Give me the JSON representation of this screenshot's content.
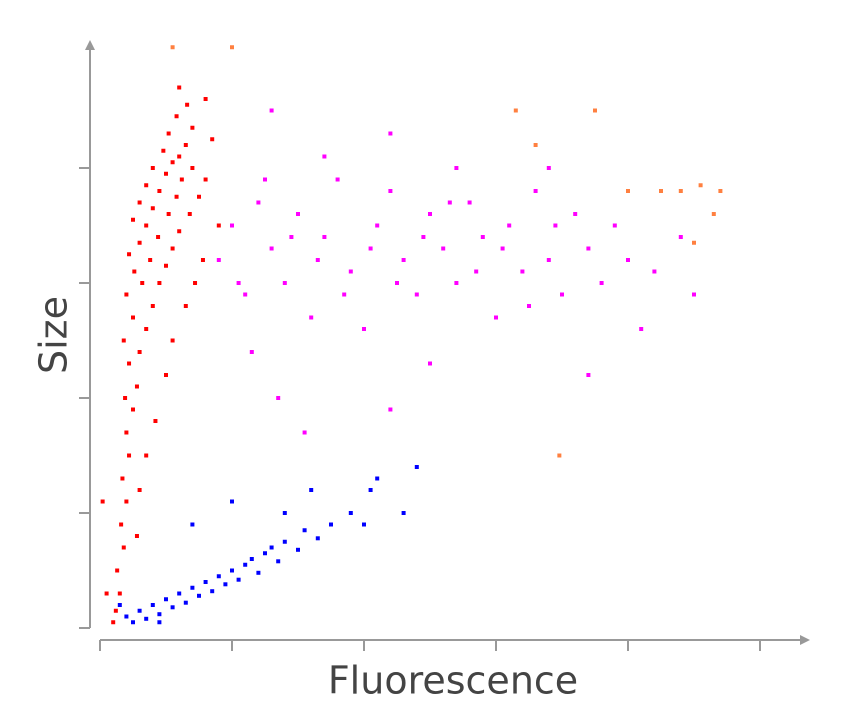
{
  "chart_data": {
    "type": "scatter",
    "xlabel": "Fluorescence",
    "ylabel": "Size",
    "xlim": [
      0,
      5.3
    ],
    "ylim": [
      0,
      5.1
    ],
    "xticks": [
      0,
      1,
      2,
      3,
      4,
      5
    ],
    "yticks": [
      0,
      1,
      2,
      3,
      4
    ],
    "grid": false,
    "series": [
      {
        "color": "#ff0000",
        "x": [
          0.12,
          0.15,
          0.13,
          0.18,
          0.16,
          0.2,
          0.17,
          0.22,
          0.2,
          0.25,
          0.19,
          0.28,
          0.22,
          0.3,
          0.18,
          0.35,
          0.25,
          0.4,
          0.2,
          0.32,
          0.45,
          0.26,
          0.5,
          0.38,
          0.22,
          0.55,
          0.3,
          0.44,
          0.6,
          0.35,
          0.25,
          0.52,
          0.68,
          0.4,
          0.3,
          0.58,
          0.75,
          0.45,
          0.35,
          0.62,
          0.8,
          0.5,
          0.4,
          0.7,
          0.55,
          0.6,
          0.48,
          0.65,
          0.52,
          0.7,
          0.58,
          0.66,
          0.6,
          0.8,
          0.85,
          0.78,
          0.65,
          0.55,
          0.5,
          0.42,
          0.35,
          0.3,
          0.28,
          0.02,
          0.05,
          0.1,
          0.72,
          0.9
        ],
        "values": [
          0.15,
          0.3,
          0.5,
          0.7,
          0.9,
          1.1,
          1.3,
          1.5,
          1.7,
          1.9,
          2.0,
          2.1,
          2.3,
          2.4,
          2.5,
          2.6,
          2.7,
          2.8,
          2.9,
          3.0,
          3.0,
          3.1,
          3.15,
          3.2,
          3.25,
          3.3,
          3.35,
          3.4,
          3.45,
          3.5,
          3.55,
          3.6,
          3.6,
          3.65,
          3.7,
          3.75,
          3.75,
          3.8,
          3.85,
          3.9,
          3.9,
          3.95,
          4.0,
          4.0,
          4.05,
          4.1,
          4.15,
          4.2,
          4.3,
          4.35,
          4.45,
          4.55,
          4.7,
          4.6,
          4.25,
          3.2,
          2.8,
          2.5,
          2.2,
          1.8,
          1.5,
          1.2,
          0.8,
          1.1,
          0.3,
          0.05,
          3.0,
          3.5
        ]
      },
      {
        "color": "#ff00ff",
        "x": [
          0.9,
          1.0,
          1.1,
          1.2,
          1.3,
          1.4,
          1.5,
          1.6,
          1.7,
          1.8,
          1.9,
          2.0,
          2.1,
          2.2,
          2.3,
          2.4,
          2.5,
          2.6,
          2.7,
          2.8,
          2.9,
          3.0,
          3.1,
          3.2,
          3.3,
          3.4,
          3.5,
          3.6,
          3.7,
          3.8,
          3.9,
          4.0,
          4.2,
          4.4,
          4.5,
          1.05,
          1.25,
          1.45,
          1.65,
          1.85,
          2.05,
          2.25,
          2.45,
          2.65,
          2.85,
          3.05,
          3.25,
          3.45,
          1.15,
          1.35,
          1.55,
          2.2,
          2.5,
          3.7,
          2.2,
          1.7,
          2.7,
          3.4,
          1.3,
          4.1
        ],
        "values": [
          3.2,
          3.5,
          2.9,
          3.7,
          3.3,
          3.0,
          3.6,
          2.7,
          3.4,
          3.9,
          3.1,
          2.6,
          3.5,
          3.8,
          3.2,
          2.9,
          3.6,
          3.3,
          3.0,
          3.7,
          3.4,
          2.7,
          3.5,
          3.1,
          3.8,
          3.2,
          2.9,
          3.6,
          3.3,
          3.0,
          3.5,
          3.2,
          3.1,
          3.4,
          2.9,
          3.0,
          3.9,
          3.4,
          3.2,
          2.9,
          3.3,
          3.0,
          3.4,
          3.7,
          3.1,
          3.3,
          2.8,
          3.5,
          2.4,
          2.0,
          1.7,
          1.9,
          2.3,
          2.2,
          4.3,
          4.1,
          4.0,
          4.0,
          4.5,
          2.6
        ]
      },
      {
        "color": "#0000ff",
        "x": [
          0.2,
          0.3,
          0.35,
          0.4,
          0.45,
          0.5,
          0.55,
          0.6,
          0.65,
          0.7,
          0.75,
          0.8,
          0.85,
          0.9,
          0.95,
          1.0,
          1.05,
          1.1,
          1.15,
          1.2,
          1.25,
          1.3,
          1.35,
          1.4,
          1.5,
          1.55,
          1.65,
          1.75,
          1.4,
          1.9,
          2.0,
          2.05,
          2.3,
          2.4,
          2.1,
          1.0,
          0.7,
          1.6,
          0.25,
          0.45,
          0.15
        ],
        "values": [
          0.1,
          0.15,
          0.08,
          0.2,
          0.12,
          0.25,
          0.18,
          0.3,
          0.22,
          0.35,
          0.28,
          0.4,
          0.32,
          0.45,
          0.38,
          0.5,
          0.42,
          0.55,
          0.6,
          0.48,
          0.65,
          0.7,
          0.58,
          0.75,
          0.68,
          0.85,
          0.78,
          0.9,
          1.0,
          1.0,
          0.9,
          1.2,
          1.0,
          1.4,
          1.3,
          1.1,
          0.9,
          1.2,
          0.05,
          0.05,
          0.2
        ]
      },
      {
        "color": "#ff8040",
        "x": [
          0.55,
          1.0,
          3.15,
          3.3,
          3.75,
          4.0,
          4.25,
          4.4,
          4.55,
          4.65,
          4.7,
          4.5,
          3.48
        ],
        "values": [
          5.05,
          5.05,
          4.5,
          4.2,
          4.5,
          3.8,
          3.8,
          3.8,
          3.85,
          3.6,
          3.8,
          3.35,
          1.5
        ]
      }
    ]
  }
}
